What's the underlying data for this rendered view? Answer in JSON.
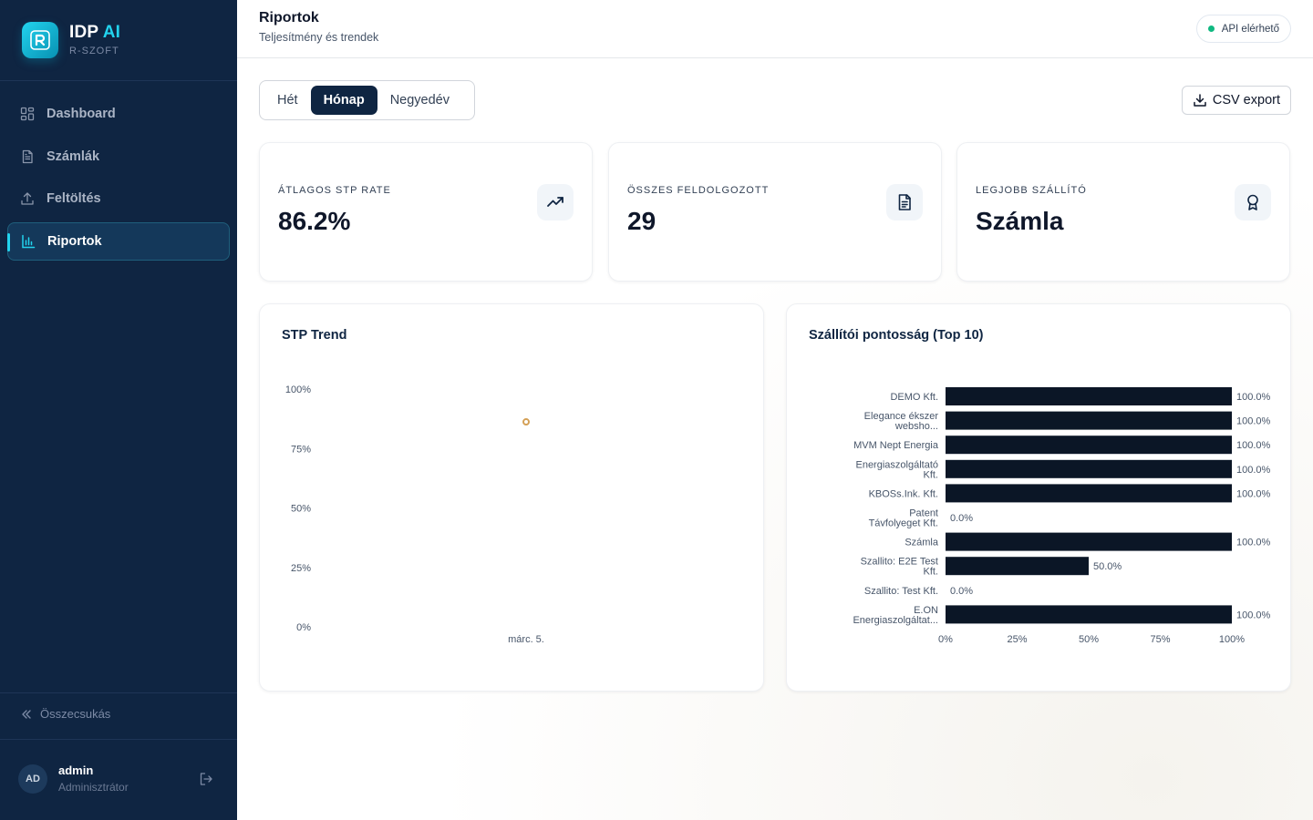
{
  "brand": {
    "name": "IDP",
    "accent": "AI",
    "subtitle": "R-SZOFT"
  },
  "nav": {
    "items": [
      {
        "label": "Dashboard",
        "icon": "dashboard-icon"
      },
      {
        "label": "Számlák",
        "icon": "document-icon"
      },
      {
        "label": "Feltöltés",
        "icon": "upload-icon"
      },
      {
        "label": "Riportok",
        "icon": "bar-chart-icon",
        "active": true
      }
    ],
    "collapse_label": "Összecsukás"
  },
  "user": {
    "initials": "AD",
    "name": "admin",
    "role": "Adminisztrátor"
  },
  "header": {
    "title": "Riportok",
    "subtitle": "Teljesítmény és trendek",
    "api_status": "API elérhető"
  },
  "period_tabs": [
    {
      "label": "Hét"
    },
    {
      "label": "Hónap",
      "active": true
    },
    {
      "label": "Negyedév"
    }
  ],
  "csv_export_label": "CSV export",
  "kpis": [
    {
      "label": "ÁTLAGOS STP RATE",
      "value": "86.2%",
      "icon": "trending-up-icon"
    },
    {
      "label": "ÖSSZES FELDOLGOZOTT",
      "value": "29",
      "icon": "document-icon"
    },
    {
      "label": "LEGJOBB SZÁLLÍTÓ",
      "value": "Számla",
      "icon": "award-icon"
    }
  ],
  "colors": {
    "sidebar": "#0f2542",
    "accent": "#22d3ee",
    "bar": "#0b1626",
    "point": "#d4a056",
    "status_ok": "#10b981"
  },
  "chart_data": [
    {
      "type": "line",
      "title": "STP Trend",
      "x": [
        "márc. 5."
      ],
      "series": [
        {
          "values": [
            86.2
          ]
        }
      ],
      "yticks": [
        "100%",
        "75%",
        "50%",
        "25%",
        "0%"
      ],
      "ylim": [
        0,
        100
      ],
      "grid": false
    },
    {
      "type": "bar",
      "orientation": "horizontal",
      "title": "Szállítói pontosság (Top 10)",
      "categories": [
        [
          "DEMO Kft."
        ],
        [
          "Elegance ékszer",
          "websho..."
        ],
        [
          "MVM Nept Energia"
        ],
        [
          "Energiaszolgáltató",
          "Kft."
        ],
        [
          "KBOSs.Ink. Kft."
        ],
        [
          "Patent",
          "Távfolyeget Kft."
        ],
        [
          "Számla"
        ],
        [
          "Szallito: E2E Test",
          "Kft."
        ],
        [
          "Szallito: Test Kft."
        ],
        [
          "E.ON",
          "Energiaszolgáltat..."
        ]
      ],
      "values": [
        100,
        100,
        100,
        100,
        100,
        0,
        100,
        50,
        0,
        100
      ],
      "value_labels": [
        "100.0%",
        "100.0%",
        "100.0%",
        "100.0%",
        "100.0%",
        "0.0%",
        "100.0%",
        "50.0%",
        "0.0%",
        "100.0%"
      ],
      "xticks": [
        "0%",
        "25%",
        "50%",
        "75%",
        "100%"
      ],
      "xlim": [
        0,
        100
      ]
    }
  ]
}
